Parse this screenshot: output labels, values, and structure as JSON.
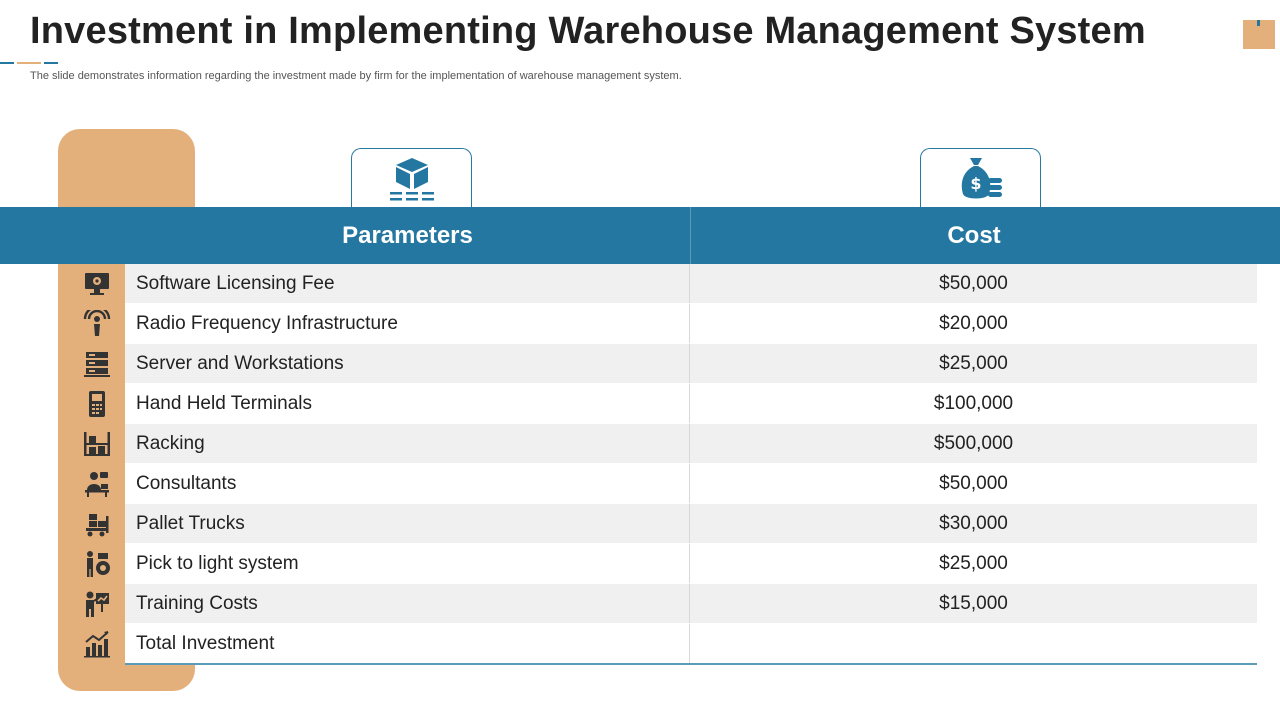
{
  "slide": {
    "title": "Investment in Implementing Warehouse Management System",
    "subtitle": "The slide demonstrates information regarding the investment made by firm for the implementation of warehouse management system."
  },
  "colors": {
    "primary_blue": "#2377a0",
    "accent_tan": "#e3b07c",
    "row_alt": "#f0f0f0",
    "text_dark": "#222222"
  },
  "table": {
    "headers": {
      "parameters": "Parameters",
      "cost": "Cost"
    },
    "header_icons": {
      "parameters": "package-box-icon",
      "cost": "money-bag-icon"
    },
    "rows": [
      {
        "parameter": "Software Licensing  Fee",
        "cost": "$50,000",
        "icon": "monitor-settings-icon"
      },
      {
        "parameter": "Radio Frequency Infrastructure",
        "cost": "$20,000",
        "icon": "rf-signal-icon"
      },
      {
        "parameter": "Server and Workstations",
        "cost": "$25,000",
        "icon": "server-rack-icon"
      },
      {
        "parameter": "Hand Held Terminals",
        "cost": "$100,000",
        "icon": "handheld-terminal-icon"
      },
      {
        "parameter": "Racking",
        "cost": "$500,000",
        "icon": "storage-rack-icon"
      },
      {
        "parameter": "Consultants",
        "cost": "$50,000",
        "icon": "consultant-icon"
      },
      {
        "parameter": "Pallet Trucks",
        "cost": "$30,000",
        "icon": "pallet-truck-icon"
      },
      {
        "parameter": "Pick to light system",
        "cost": "$25,000",
        "icon": "pick-to-light-icon"
      },
      {
        "parameter": "Training  Costs",
        "cost": "$15,000",
        "icon": "training-presentation-icon"
      },
      {
        "parameter": "Total Investment",
        "cost": "",
        "icon": "investment-growth-icon"
      }
    ]
  }
}
